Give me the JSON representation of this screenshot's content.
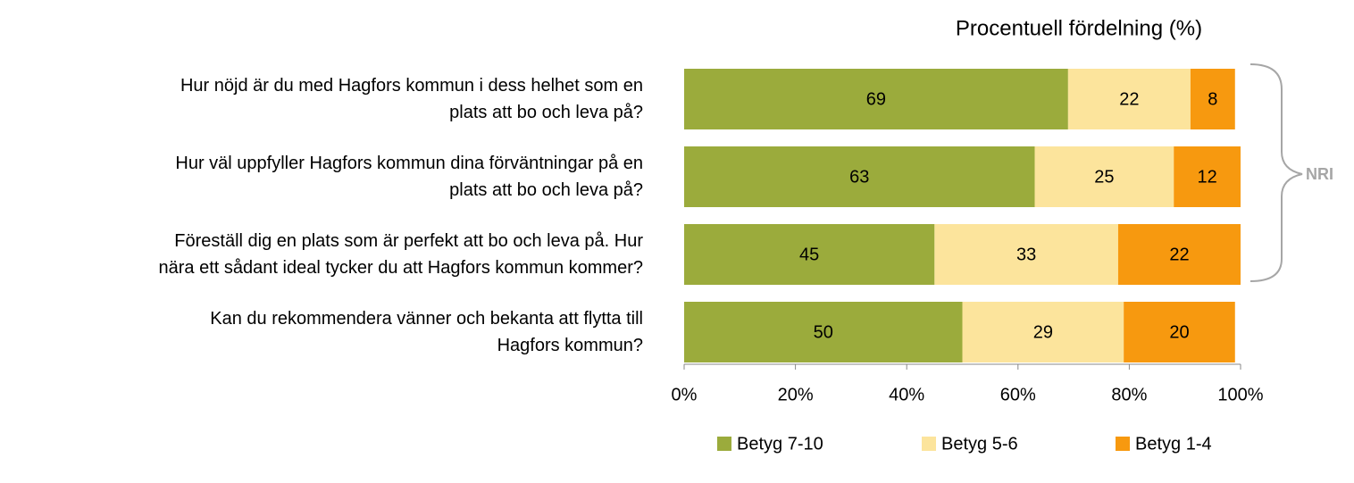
{
  "chart_data": {
    "type": "stacked-bar-horizontal",
    "title": "Procentuell fördelning (%)",
    "categories": [
      "Hur nöjd är du med Hagfors kommun i dess helhet som en\nplats att bo och leva på?",
      "Hur väl uppfyller Hagfors kommun dina förväntningar på en\nplats att bo och leva på?",
      "Föreställ dig en plats som är perfekt att bo och leva på. Hur\nnära ett sådant ideal tycker du att Hagfors kommun kommer?",
      "Kan du rekommendera vänner och bekanta att flytta till\nHagfors kommun?"
    ],
    "series": [
      {
        "name": "Betyg 7-10",
        "color": "#9bab3c",
        "values": [
          69,
          63,
          45,
          50
        ]
      },
      {
        "name": "Betyg 5-6",
        "color": "#fce49c",
        "values": [
          22,
          25,
          33,
          29
        ]
      },
      {
        "name": "Betyg 1-4",
        "color": "#f7990f",
        "values": [
          8,
          12,
          22,
          20
        ]
      }
    ],
    "xlim": [
      0,
      100
    ],
    "xticks": [
      {
        "value": 0,
        "label": "0%"
      },
      {
        "value": 20,
        "label": "20%"
      },
      {
        "value": 40,
        "label": "40%"
      },
      {
        "value": 60,
        "label": "60%"
      },
      {
        "value": 80,
        "label": "80%"
      },
      {
        "value": 100,
        "label": "100%"
      }
    ],
    "annotation": "NRI",
    "legend": "bottom"
  }
}
